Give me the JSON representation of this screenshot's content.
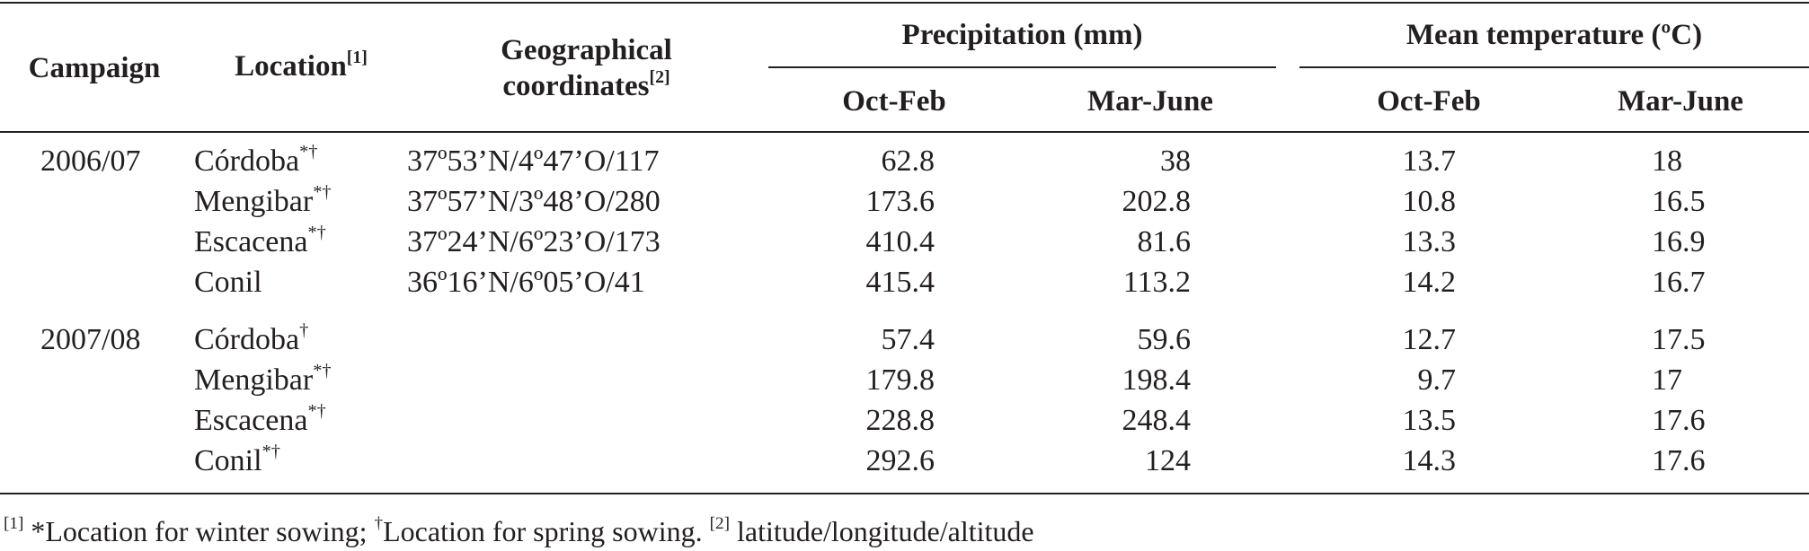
{
  "table": {
    "headers": {
      "campaign": "Campaign",
      "location": "Location",
      "location_sup": "[1]",
      "geo_line1": "Geographical",
      "geo_line2": "coordinates",
      "geo_sup": "[2]",
      "precipitation": "Precipitation (mm)",
      "temperature": "Mean temperature (ºC)",
      "precip_oct_feb": "Oct-Feb",
      "precip_mar_june": "Mar-June",
      "temp_oct_feb": "Oct-Feb",
      "temp_mar_june": "Mar-June"
    },
    "groups": [
      {
        "campaign": "2006/07",
        "rows": [
          {
            "location": "Córdoba",
            "mark": "*†",
            "coords": "37º53’N/4º47’O/117",
            "precip_oct_feb": "62.8",
            "precip_mar_june": "38",
            "temp_oct_feb": "13.7",
            "temp_mar_june": "18"
          },
          {
            "location": "Mengibar",
            "mark": "*†",
            "coords": "37º57’N/3º48’O/280",
            "precip_oct_feb": "173.6",
            "precip_mar_june": "202.8",
            "temp_oct_feb": "10.8",
            "temp_mar_june": "16.5"
          },
          {
            "location": "Escacena",
            "mark": "*†",
            "coords": "37º24’N/6º23’O/173",
            "precip_oct_feb": "410.4",
            "precip_mar_june": "81.6",
            "temp_oct_feb": "13.3",
            "temp_mar_june": "16.9"
          },
          {
            "location": "Conil",
            "mark": "",
            "coords": "36º16’N/6º05’O/41",
            "precip_oct_feb": "415.4",
            "precip_mar_june": "113.2",
            "temp_oct_feb": "14.2",
            "temp_mar_june": "16.7"
          }
        ]
      },
      {
        "campaign": "2007/08",
        "rows": [
          {
            "location": "Córdoba",
            "mark": "†",
            "coords": "",
            "precip_oct_feb": "57.4",
            "precip_mar_june": "59.6",
            "temp_oct_feb": "12.7",
            "temp_mar_june": "17.5"
          },
          {
            "location": "Mengibar",
            "mark": "*†",
            "coords": "",
            "precip_oct_feb": "179.8",
            "precip_mar_june": "198.4",
            "temp_oct_feb": "9.7",
            "temp_mar_june": "17"
          },
          {
            "location": "Escacena",
            "mark": "*†",
            "coords": "",
            "precip_oct_feb": "228.8",
            "precip_mar_june": "248.4",
            "temp_oct_feb": "13.5",
            "temp_mar_june": "17.6"
          },
          {
            "location": "Conil",
            "mark": "*†",
            "coords": "",
            "precip_oct_feb": "292.6",
            "precip_mar_june": "124",
            "temp_oct_feb": "14.3",
            "temp_mar_june": "17.6"
          }
        ]
      }
    ]
  },
  "footnote": {
    "sup1": "[1]",
    "text1": " *Location for winter sowing; ",
    "dagger": "†",
    "text2": "Location for spring sowing. ",
    "sup2": "[2]",
    "text3": " latitude/longitude/altitude"
  }
}
